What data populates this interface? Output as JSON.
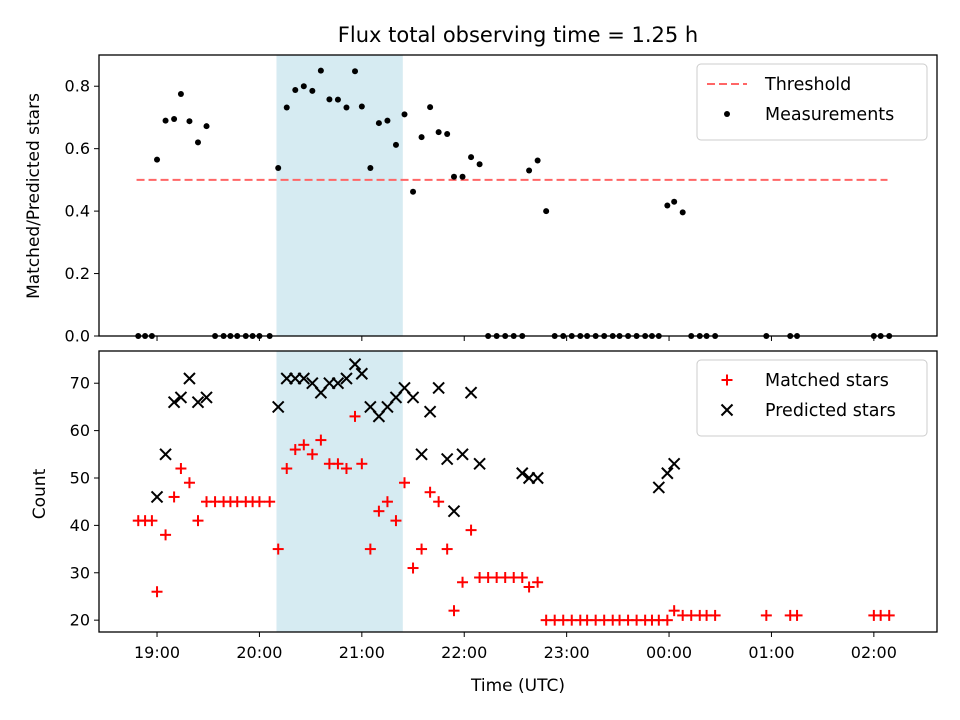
{
  "chart_data": [
    {
      "type": "scatter",
      "title": "Flux total observing time = 1.25 h",
      "xlabel": "",
      "ylabel": "Matched/Predicted stars",
      "ylim": [
        0,
        0.9
      ],
      "yticks": [
        "0.0",
        "0.2",
        "0.4",
        "0.6",
        "0.8"
      ],
      "xlim": [
        "18:26",
        "02:37"
      ],
      "highlight_band": {
        "from": "20:10",
        "to": "21:24",
        "color": "#add8e6"
      },
      "legend": {
        "placement": "top-right",
        "entries": [
          "Threshold",
          "Measurements"
        ]
      },
      "threshold": {
        "name": "Threshold",
        "value": 0.5,
        "x_from": "18:48",
        "x_to": "02:08",
        "color": "#ff6666",
        "style": "dashed"
      },
      "series": [
        {
          "name": "Measurements",
          "marker": "dot",
          "color": "#000000",
          "points": [
            {
              "x": "18:49",
              "y": 0
            },
            {
              "x": "18:53",
              "y": 0
            },
            {
              "x": "18:57",
              "y": 0
            },
            {
              "x": "19:00",
              "y": 0.565
            },
            {
              "x": "19:05",
              "y": 0.69
            },
            {
              "x": "19:10",
              "y": 0.695
            },
            {
              "x": "19:14",
              "y": 0.775
            },
            {
              "x": "19:19",
              "y": 0.688
            },
            {
              "x": "19:24",
              "y": 0.62
            },
            {
              "x": "19:29",
              "y": 0.672
            },
            {
              "x": "19:34",
              "y": 0
            },
            {
              "x": "19:39",
              "y": 0
            },
            {
              "x": "19:43",
              "y": 0
            },
            {
              "x": "19:47",
              "y": 0
            },
            {
              "x": "19:52",
              "y": 0
            },
            {
              "x": "19:56",
              "y": 0
            },
            {
              "x": "20:00",
              "y": 0
            },
            {
              "x": "20:06",
              "y": 0
            },
            {
              "x": "20:11",
              "y": 0.538
            },
            {
              "x": "20:16",
              "y": 0.732
            },
            {
              "x": "20:21",
              "y": 0.788
            },
            {
              "x": "20:26",
              "y": 0.8
            },
            {
              "x": "20:31",
              "y": 0.785
            },
            {
              "x": "20:36",
              "y": 0.85
            },
            {
              "x": "20:41",
              "y": 0.758
            },
            {
              "x": "20:46",
              "y": 0.757
            },
            {
              "x": "20:51",
              "y": 0.732
            },
            {
              "x": "20:56",
              "y": 0.848
            },
            {
              "x": "21:00",
              "y": 0.735
            },
            {
              "x": "21:05",
              "y": 0.538
            },
            {
              "x": "21:10",
              "y": 0.682
            },
            {
              "x": "21:15",
              "y": 0.69
            },
            {
              "x": "21:20",
              "y": 0.612
            },
            {
              "x": "21:25",
              "y": 0.71
            },
            {
              "x": "21:30",
              "y": 0.462
            },
            {
              "x": "21:35",
              "y": 0.637
            },
            {
              "x": "21:40",
              "y": 0.733
            },
            {
              "x": "21:45",
              "y": 0.653
            },
            {
              "x": "21:50",
              "y": 0.647
            },
            {
              "x": "21:54",
              "y": 0.51
            },
            {
              "x": "21:59",
              "y": 0.51
            },
            {
              "x": "22:04",
              "y": 0.573
            },
            {
              "x": "22:09",
              "y": 0.55
            },
            {
              "x": "22:14",
              "y": 0
            },
            {
              "x": "22:19",
              "y": 0
            },
            {
              "x": "22:24",
              "y": 0
            },
            {
              "x": "22:29",
              "y": 0
            },
            {
              "x": "22:34",
              "y": 0
            },
            {
              "x": "22:38",
              "y": 0.53
            },
            {
              "x": "22:43",
              "y": 0.562
            },
            {
              "x": "22:48",
              "y": 0.4
            },
            {
              "x": "22:53",
              "y": 0
            },
            {
              "x": "22:58",
              "y": 0
            },
            {
              "x": "23:03",
              "y": 0
            },
            {
              "x": "23:08",
              "y": 0
            },
            {
              "x": "23:12",
              "y": 0
            },
            {
              "x": "23:17",
              "y": 0
            },
            {
              "x": "23:22",
              "y": 0
            },
            {
              "x": "23:27",
              "y": 0
            },
            {
              "x": "23:31",
              "y": 0
            },
            {
              "x": "23:36",
              "y": 0
            },
            {
              "x": "23:41",
              "y": 0
            },
            {
              "x": "23:46",
              "y": 0
            },
            {
              "x": "23:50",
              "y": 0
            },
            {
              "x": "23:54",
              "y": 0
            },
            {
              "x": "23:59",
              "y": 0.418
            },
            {
              "x": "00:03",
              "y": 0.43
            },
            {
              "x": "00:08",
              "y": 0.396
            },
            {
              "x": "00:13",
              "y": 0
            },
            {
              "x": "00:18",
              "y": 0
            },
            {
              "x": "00:22",
              "y": 0
            },
            {
              "x": "00:27",
              "y": 0
            },
            {
              "x": "00:57",
              "y": 0
            },
            {
              "x": "01:11",
              "y": 0
            },
            {
              "x": "01:15",
              "y": 0
            },
            {
              "x": "02:00",
              "y": 0
            },
            {
              "x": "02:04",
              "y": 0
            },
            {
              "x": "02:09",
              "y": 0
            }
          ]
        }
      ]
    },
    {
      "type": "scatter",
      "title": "",
      "xlabel": "Time (UTC)",
      "ylabel": "Count",
      "ylim": [
        17.5,
        76.8
      ],
      "yticks": [
        "20",
        "30",
        "40",
        "50",
        "60",
        "70"
      ],
      "xlim": [
        "18:26",
        "02:37"
      ],
      "xticks": [
        "19:00",
        "20:00",
        "21:00",
        "22:00",
        "23:00",
        "00:00",
        "01:00",
        "02:00"
      ],
      "highlight_band": {
        "from": "20:10",
        "to": "21:24",
        "color": "#add8e6"
      },
      "legend": {
        "placement": "top-right",
        "entries": [
          "Matched stars",
          "Predicted stars"
        ]
      },
      "series": [
        {
          "name": "Matched stars",
          "marker": "plus",
          "color": "#ff0000",
          "points": [
            {
              "x": "18:49",
              "y": 41
            },
            {
              "x": "18:53",
              "y": 41
            },
            {
              "x": "18:57",
              "y": 41
            },
            {
              "x": "19:00",
              "y": 26
            },
            {
              "x": "19:05",
              "y": 38
            },
            {
              "x": "19:10",
              "y": 46
            },
            {
              "x": "19:14",
              "y": 52
            },
            {
              "x": "19:19",
              "y": 49
            },
            {
              "x": "19:24",
              "y": 41
            },
            {
              "x": "19:29",
              "y": 45
            },
            {
              "x": "19:34",
              "y": 45
            },
            {
              "x": "19:39",
              "y": 45
            },
            {
              "x": "19:43",
              "y": 45
            },
            {
              "x": "19:47",
              "y": 45
            },
            {
              "x": "19:52",
              "y": 45
            },
            {
              "x": "19:56",
              "y": 45
            },
            {
              "x": "20:00",
              "y": 45
            },
            {
              "x": "20:06",
              "y": 45
            },
            {
              "x": "20:11",
              "y": 35
            },
            {
              "x": "20:16",
              "y": 52
            },
            {
              "x": "20:21",
              "y": 56
            },
            {
              "x": "20:26",
              "y": 57
            },
            {
              "x": "20:31",
              "y": 55
            },
            {
              "x": "20:36",
              "y": 58
            },
            {
              "x": "20:41",
              "y": 53
            },
            {
              "x": "20:46",
              "y": 53
            },
            {
              "x": "20:51",
              "y": 52
            },
            {
              "x": "20:56",
              "y": 63
            },
            {
              "x": "21:00",
              "y": 53
            },
            {
              "x": "21:05",
              "y": 35
            },
            {
              "x": "21:10",
              "y": 43
            },
            {
              "x": "21:15",
              "y": 45
            },
            {
              "x": "21:20",
              "y": 41
            },
            {
              "x": "21:25",
              "y": 49
            },
            {
              "x": "21:30",
              "y": 31
            },
            {
              "x": "21:35",
              "y": 35
            },
            {
              "x": "21:40",
              "y": 47
            },
            {
              "x": "21:45",
              "y": 45
            },
            {
              "x": "21:50",
              "y": 35
            },
            {
              "x": "21:54",
              "y": 22
            },
            {
              "x": "21:59",
              "y": 28
            },
            {
              "x": "22:04",
              "y": 39
            },
            {
              "x": "22:09",
              "y": 29
            },
            {
              "x": "22:14",
              "y": 29
            },
            {
              "x": "22:19",
              "y": 29
            },
            {
              "x": "22:24",
              "y": 29
            },
            {
              "x": "22:29",
              "y": 29
            },
            {
              "x": "22:34",
              "y": 29
            },
            {
              "x": "22:38",
              "y": 27
            },
            {
              "x": "22:43",
              "y": 28
            },
            {
              "x": "22:48",
              "y": 20
            },
            {
              "x": "22:53",
              "y": 20
            },
            {
              "x": "22:58",
              "y": 20
            },
            {
              "x": "23:03",
              "y": 20
            },
            {
              "x": "23:08",
              "y": 20
            },
            {
              "x": "23:12",
              "y": 20
            },
            {
              "x": "23:17",
              "y": 20
            },
            {
              "x": "23:22",
              "y": 20
            },
            {
              "x": "23:27",
              "y": 20
            },
            {
              "x": "23:31",
              "y": 20
            },
            {
              "x": "23:36",
              "y": 20
            },
            {
              "x": "23:41",
              "y": 20
            },
            {
              "x": "23:46",
              "y": 20
            },
            {
              "x": "23:50",
              "y": 20
            },
            {
              "x": "23:54",
              "y": 20
            },
            {
              "x": "23:59",
              "y": 20
            },
            {
              "x": "00:03",
              "y": 22
            },
            {
              "x": "00:08",
              "y": 21
            },
            {
              "x": "00:13",
              "y": 21
            },
            {
              "x": "00:18",
              "y": 21
            },
            {
              "x": "00:22",
              "y": 21
            },
            {
              "x": "00:27",
              "y": 21
            },
            {
              "x": "00:57",
              "y": 21
            },
            {
              "x": "01:11",
              "y": 21
            },
            {
              "x": "01:15",
              "y": 21
            },
            {
              "x": "02:00",
              "y": 21
            },
            {
              "x": "02:04",
              "y": 21
            },
            {
              "x": "02:09",
              "y": 21
            }
          ]
        },
        {
          "name": "Predicted stars",
          "marker": "x",
          "color": "#000000",
          "points": [
            {
              "x": "19:00",
              "y": 46
            },
            {
              "x": "19:05",
              "y": 55
            },
            {
              "x": "19:10",
              "y": 66
            },
            {
              "x": "19:14",
              "y": 67
            },
            {
              "x": "19:19",
              "y": 71
            },
            {
              "x": "19:24",
              "y": 66
            },
            {
              "x": "19:29",
              "y": 67
            },
            {
              "x": "20:11",
              "y": 65
            },
            {
              "x": "20:16",
              "y": 71
            },
            {
              "x": "20:21",
              "y": 71
            },
            {
              "x": "20:26",
              "y": 71
            },
            {
              "x": "20:31",
              "y": 70
            },
            {
              "x": "20:36",
              "y": 68
            },
            {
              "x": "20:41",
              "y": 70
            },
            {
              "x": "20:46",
              "y": 70
            },
            {
              "x": "20:51",
              "y": 71
            },
            {
              "x": "20:56",
              "y": 74
            },
            {
              "x": "21:00",
              "y": 72
            },
            {
              "x": "21:05",
              "y": 65
            },
            {
              "x": "21:10",
              "y": 63
            },
            {
              "x": "21:15",
              "y": 65
            },
            {
              "x": "21:20",
              "y": 67
            },
            {
              "x": "21:25",
              "y": 69
            },
            {
              "x": "21:30",
              "y": 67
            },
            {
              "x": "21:35",
              "y": 55
            },
            {
              "x": "21:40",
              "y": 64
            },
            {
              "x": "21:45",
              "y": 69
            },
            {
              "x": "21:50",
              "y": 54
            },
            {
              "x": "21:54",
              "y": 43
            },
            {
              "x": "21:59",
              "y": 55
            },
            {
              "x": "22:04",
              "y": 68
            },
            {
              "x": "22:09",
              "y": 53
            },
            {
              "x": "22:34",
              "y": 51
            },
            {
              "x": "22:38",
              "y": 50
            },
            {
              "x": "22:43",
              "y": 50
            },
            {
              "x": "23:54",
              "y": 48
            },
            {
              "x": "23:59",
              "y": 51
            },
            {
              "x": "00:03",
              "y": 53
            }
          ]
        }
      ]
    }
  ]
}
